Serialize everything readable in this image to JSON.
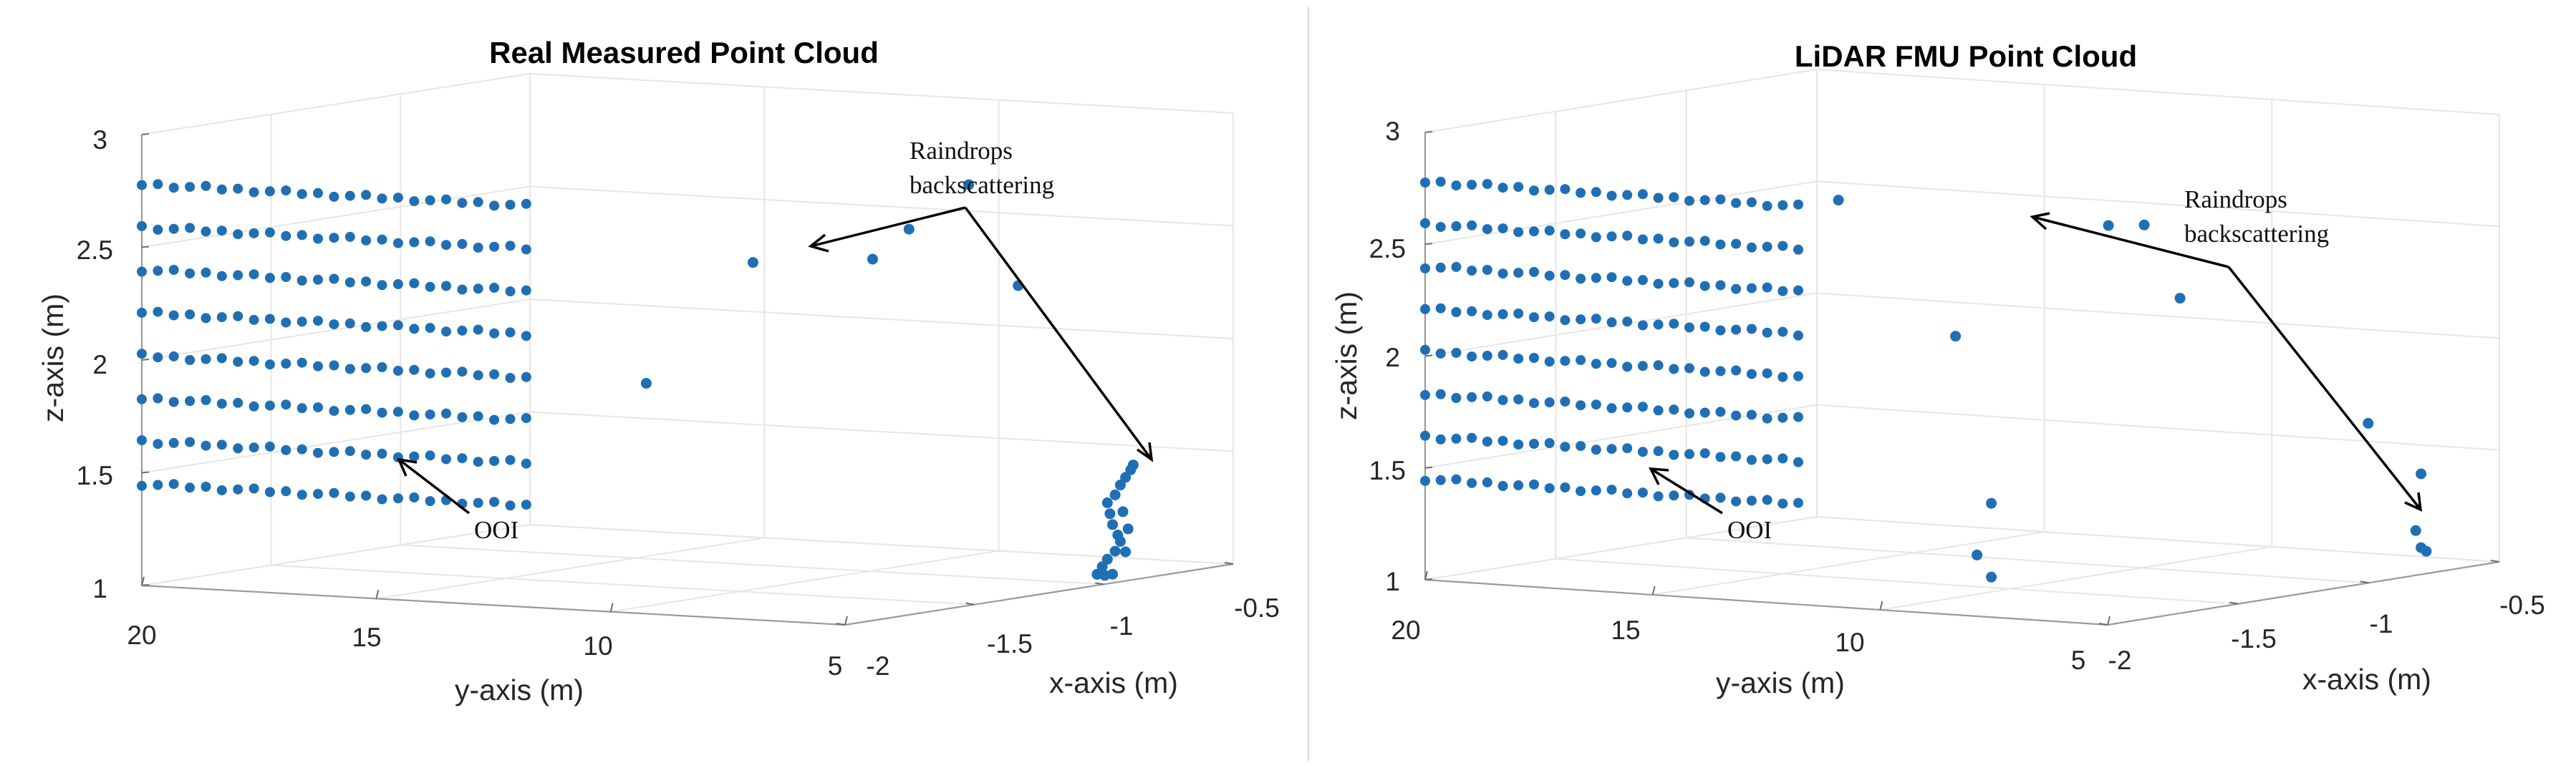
{
  "chart_data": [
    {
      "type": "scatter3d",
      "title": "Real Measured Point Cloud",
      "xlabel": "x-axis (m)",
      "ylabel": "y-axis (m)",
      "zlabel": "z-axis (m)",
      "xlim": [
        -2,
        -0.5
      ],
      "ylim": [
        5,
        20
      ],
      "zlim": [
        1,
        3
      ],
      "x_ticks": [
        "-2",
        "-1.5",
        "-1",
        "-0.5"
      ],
      "y_ticks": [
        "20",
        "15",
        "10",
        "5"
      ],
      "z_ticks": [
        "1",
        "1.5",
        "2",
        "2.5",
        "3"
      ],
      "series": [
        {
          "name": "OOI (wall)",
          "x": -2,
          "y_range": [
            11.8,
            20
          ],
          "count_per_row": 25,
          "z_rows": [
            1.45,
            1.64,
            1.83,
            2.02,
            2.21,
            2.4,
            2.59,
            2.78
          ]
        },
        {
          "name": "Raindrops backscattering",
          "points": [
            {
              "x": -1.5,
              "y": 12.0,
              "z": 1.9
            },
            {
              "x": -1.45,
              "y": 10.0,
              "z": 2.45
            },
            {
              "x": -1.35,
              "y": 8.0,
              "z": 2.47
            },
            {
              "x": -1.3,
              "y": 7.5,
              "z": 2.6
            },
            {
              "x": -1.25,
              "y": 6.5,
              "z": 2.8
            },
            {
              "x": -1.15,
              "y": 6.0,
              "z": 2.34
            },
            {
              "x": -0.95,
              "y": 5.2,
              "z": 1.35
            },
            {
              "x": -0.92,
              "y": 5.2,
              "z": 1.38
            },
            {
              "x": -0.9,
              "y": 5.2,
              "z": 1.42
            },
            {
              "x": -0.88,
              "y": 5.2,
              "z": 1.45
            },
            {
              "x": -0.86,
              "y": 5.2,
              "z": 1.48
            },
            {
              "x": -0.85,
              "y": 5.2,
              "z": 1.5
            },
            {
              "x": -0.94,
              "y": 5.2,
              "z": 1.3
            },
            {
              "x": -0.93,
              "y": 5.2,
              "z": 1.25
            },
            {
              "x": -0.91,
              "y": 5.2,
              "z": 1.2
            },
            {
              "x": -0.9,
              "y": 5.2,
              "z": 1.17
            },
            {
              "x": -0.92,
              "y": 5.2,
              "z": 1.13
            },
            {
              "x": -0.95,
              "y": 5.2,
              "z": 1.1
            },
            {
              "x": -0.97,
              "y": 5.2,
              "z": 1.07
            },
            {
              "x": -0.99,
              "y": 5.2,
              "z": 1.04
            },
            {
              "x": -0.96,
              "y": 5.2,
              "z": 1.03
            },
            {
              "x": -0.93,
              "y": 5.2,
              "z": 1.03
            },
            {
              "x": -0.88,
              "y": 5.2,
              "z": 1.12
            },
            {
              "x": -0.87,
              "y": 5.2,
              "z": 1.22
            },
            {
              "x": -0.89,
              "y": 5.2,
              "z": 1.3
            }
          ]
        }
      ],
      "annotations": [
        {
          "text": "Raindrops backscattering"
        },
        {
          "text": "OOI"
        }
      ]
    },
    {
      "type": "scatter3d",
      "title": "LiDAR FMU Point Cloud",
      "xlabel": "x-axis (m)",
      "ylabel": "y-axis (m)",
      "zlabel": "z-axis (m)",
      "xlim": [
        -2,
        -0.5
      ],
      "ylim": [
        5,
        20
      ],
      "zlim": [
        1,
        3
      ],
      "x_ticks": [
        "-2",
        "-1.5",
        "-1",
        "-0.5"
      ],
      "y_ticks": [
        "20",
        "15",
        "10",
        "5"
      ],
      "z_ticks": [
        "1",
        "1.5",
        "2",
        "2.5",
        "3"
      ],
      "series": [
        {
          "name": "OOI (wall)",
          "x": -2,
          "y_range": [
            11.8,
            20
          ],
          "count_per_row": 25,
          "z_rows": [
            1.45,
            1.64,
            1.83,
            2.02,
            2.21,
            2.4,
            2.59,
            2.78
          ]
        },
        {
          "name": "Raindrops backscattering",
          "points": [
            {
              "x": -1.55,
              "y": 13.5,
              "z": 2.7
            },
            {
              "x": -1.45,
              "y": 11.5,
              "z": 2.1
            },
            {
              "x": -1.4,
              "y": 11.0,
              "z": 1.35
            },
            {
              "x": -1.42,
              "y": 11.2,
              "z": 1.12
            },
            {
              "x": -1.4,
              "y": 11.0,
              "z": 1.02
            },
            {
              "x": -1.3,
              "y": 9.0,
              "z": 2.6
            },
            {
              "x": -1.25,
              "y": 8.5,
              "z": 2.6
            },
            {
              "x": -1.2,
              "y": 8.0,
              "z": 2.27
            },
            {
              "x": -0.8,
              "y": 5.0,
              "z": 1.45
            },
            {
              "x": -0.95,
              "y": 5.3,
              "z": 1.7
            },
            {
              "x": -0.82,
              "y": 5.0,
              "z": 1.2
            },
            {
              "x": -0.8,
              "y": 5.0,
              "z": 1.12
            },
            {
              "x": -0.78,
              "y": 5.0,
              "z": 1.1
            }
          ]
        }
      ],
      "annotations": [
        {
          "text": "Raindrops backscattering"
        },
        {
          "text": "OOI"
        }
      ]
    }
  ],
  "colors": {
    "point": "#1f6fb5",
    "axis": "#9a9a9a",
    "grid": "#e6e6e6"
  }
}
